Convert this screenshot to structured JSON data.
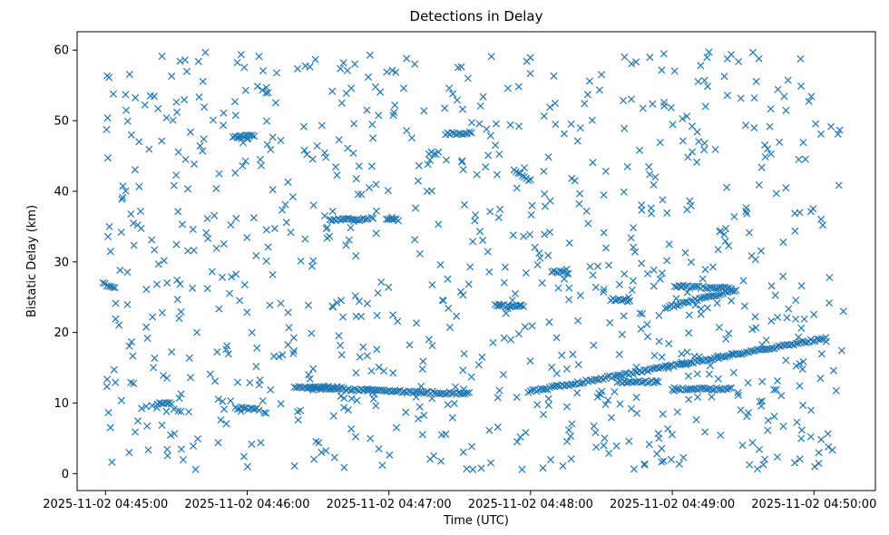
{
  "chart_data": {
    "type": "scatter",
    "title": "Detections in Delay",
    "xlabel": "Time (UTC)",
    "ylabel": "Bistatic Delay (km)",
    "marker": "x",
    "color": "#1f77b4",
    "grid": false,
    "legend": "none",
    "xlim": [
      "2025-11-02 04:44:48",
      "2025-11-02 04:50:26"
    ],
    "ylim": [
      -2.4,
      62.6
    ],
    "x_ticks": [
      "2025-11-02 04:45:00",
      "2025-11-02 04:46:00",
      "2025-11-02 04:47:00",
      "2025-11-02 04:48:00",
      "2025-11-02 04:49:00",
      "2025-11-02 04:50:00"
    ],
    "y_ticks": [
      0,
      10,
      20,
      30,
      40,
      50,
      60
    ],
    "tracks": [
      {
        "start_time": "2025-11-02 04:46:20",
        "end_time": "2025-11-02 04:47:34",
        "start_delay": 12.2,
        "end_delay": 11.3
      },
      {
        "start_time": "2025-11-02 04:47:59",
        "end_time": "2025-11-02 04:50:05",
        "start_delay": 11.6,
        "end_delay": 19.2
      },
      {
        "start_time": "2025-11-02 04:46:35",
        "end_time": "2025-11-02 04:46:51",
        "start_delay": 36.0,
        "end_delay": 36.0
      },
      {
        "start_time": "2025-11-02 04:46:59",
        "end_time": "2025-11-02 04:47:04",
        "start_delay": 36.0,
        "end_delay": 36.0
      },
      {
        "start_time": "2025-11-02 04:46:26",
        "end_time": "2025-11-02 04:46:40",
        "start_delay": 12.2,
        "end_delay": 12.2
      },
      {
        "start_time": "2025-11-02 04:49:00",
        "end_time": "2025-11-02 04:49:25",
        "start_delay": 12.0,
        "end_delay": 12.0
      },
      {
        "start_time": "2025-11-02 04:45:22",
        "end_time": "2025-11-02 04:45:28",
        "start_delay": 10.0,
        "end_delay": 10.0
      },
      {
        "start_time": "2025-11-02 04:45:55",
        "end_time": "2025-11-02 04:46:05",
        "start_delay": 9.3,
        "end_delay": 9.1
      },
      {
        "start_time": "2025-11-02 04:45:54",
        "end_time": "2025-11-02 04:46:03",
        "start_delay": 47.8,
        "end_delay": 47.8
      },
      {
        "start_time": "2025-11-02 04:44:59",
        "end_time": "2025-11-02 04:45:04",
        "start_delay": 27.0,
        "end_delay": 26.2
      },
      {
        "start_time": "2025-11-02 04:48:09",
        "end_time": "2025-11-02 04:48:16",
        "start_delay": 28.6,
        "end_delay": 28.5
      },
      {
        "start_time": "2025-11-02 04:48:34",
        "end_time": "2025-11-02 04:48:42",
        "start_delay": 24.7,
        "end_delay": 24.5
      },
      {
        "start_time": "2025-11-02 04:48:57",
        "end_time": "2025-11-02 04:49:27",
        "start_delay": 23.5,
        "end_delay": 26.0
      },
      {
        "start_time": "2025-11-02 04:49:01",
        "end_time": "2025-11-02 04:49:25",
        "start_delay": 26.5,
        "end_delay": 26.3
      },
      {
        "start_time": "2025-11-02 04:48:38",
        "end_time": "2025-11-02 04:48:54",
        "start_delay": 13.0,
        "end_delay": 13.0
      },
      {
        "start_time": "2025-11-02 04:47:24",
        "end_time": "2025-11-02 04:47:35",
        "start_delay": 48.2,
        "end_delay": 48.2
      },
      {
        "start_time": "2025-11-02 04:47:17",
        "end_time": "2025-11-02 04:47:21",
        "start_delay": 45.4,
        "end_delay": 45.4
      },
      {
        "start_time": "2025-11-02 04:47:45",
        "end_time": "2025-11-02 04:47:57",
        "start_delay": 23.8,
        "end_delay": 23.8
      },
      {
        "start_time": "2025-11-02 04:47:53",
        "end_time": "2025-11-02 04:48:00",
        "start_delay": 43.0,
        "end_delay": 41.5
      }
    ]
  }
}
